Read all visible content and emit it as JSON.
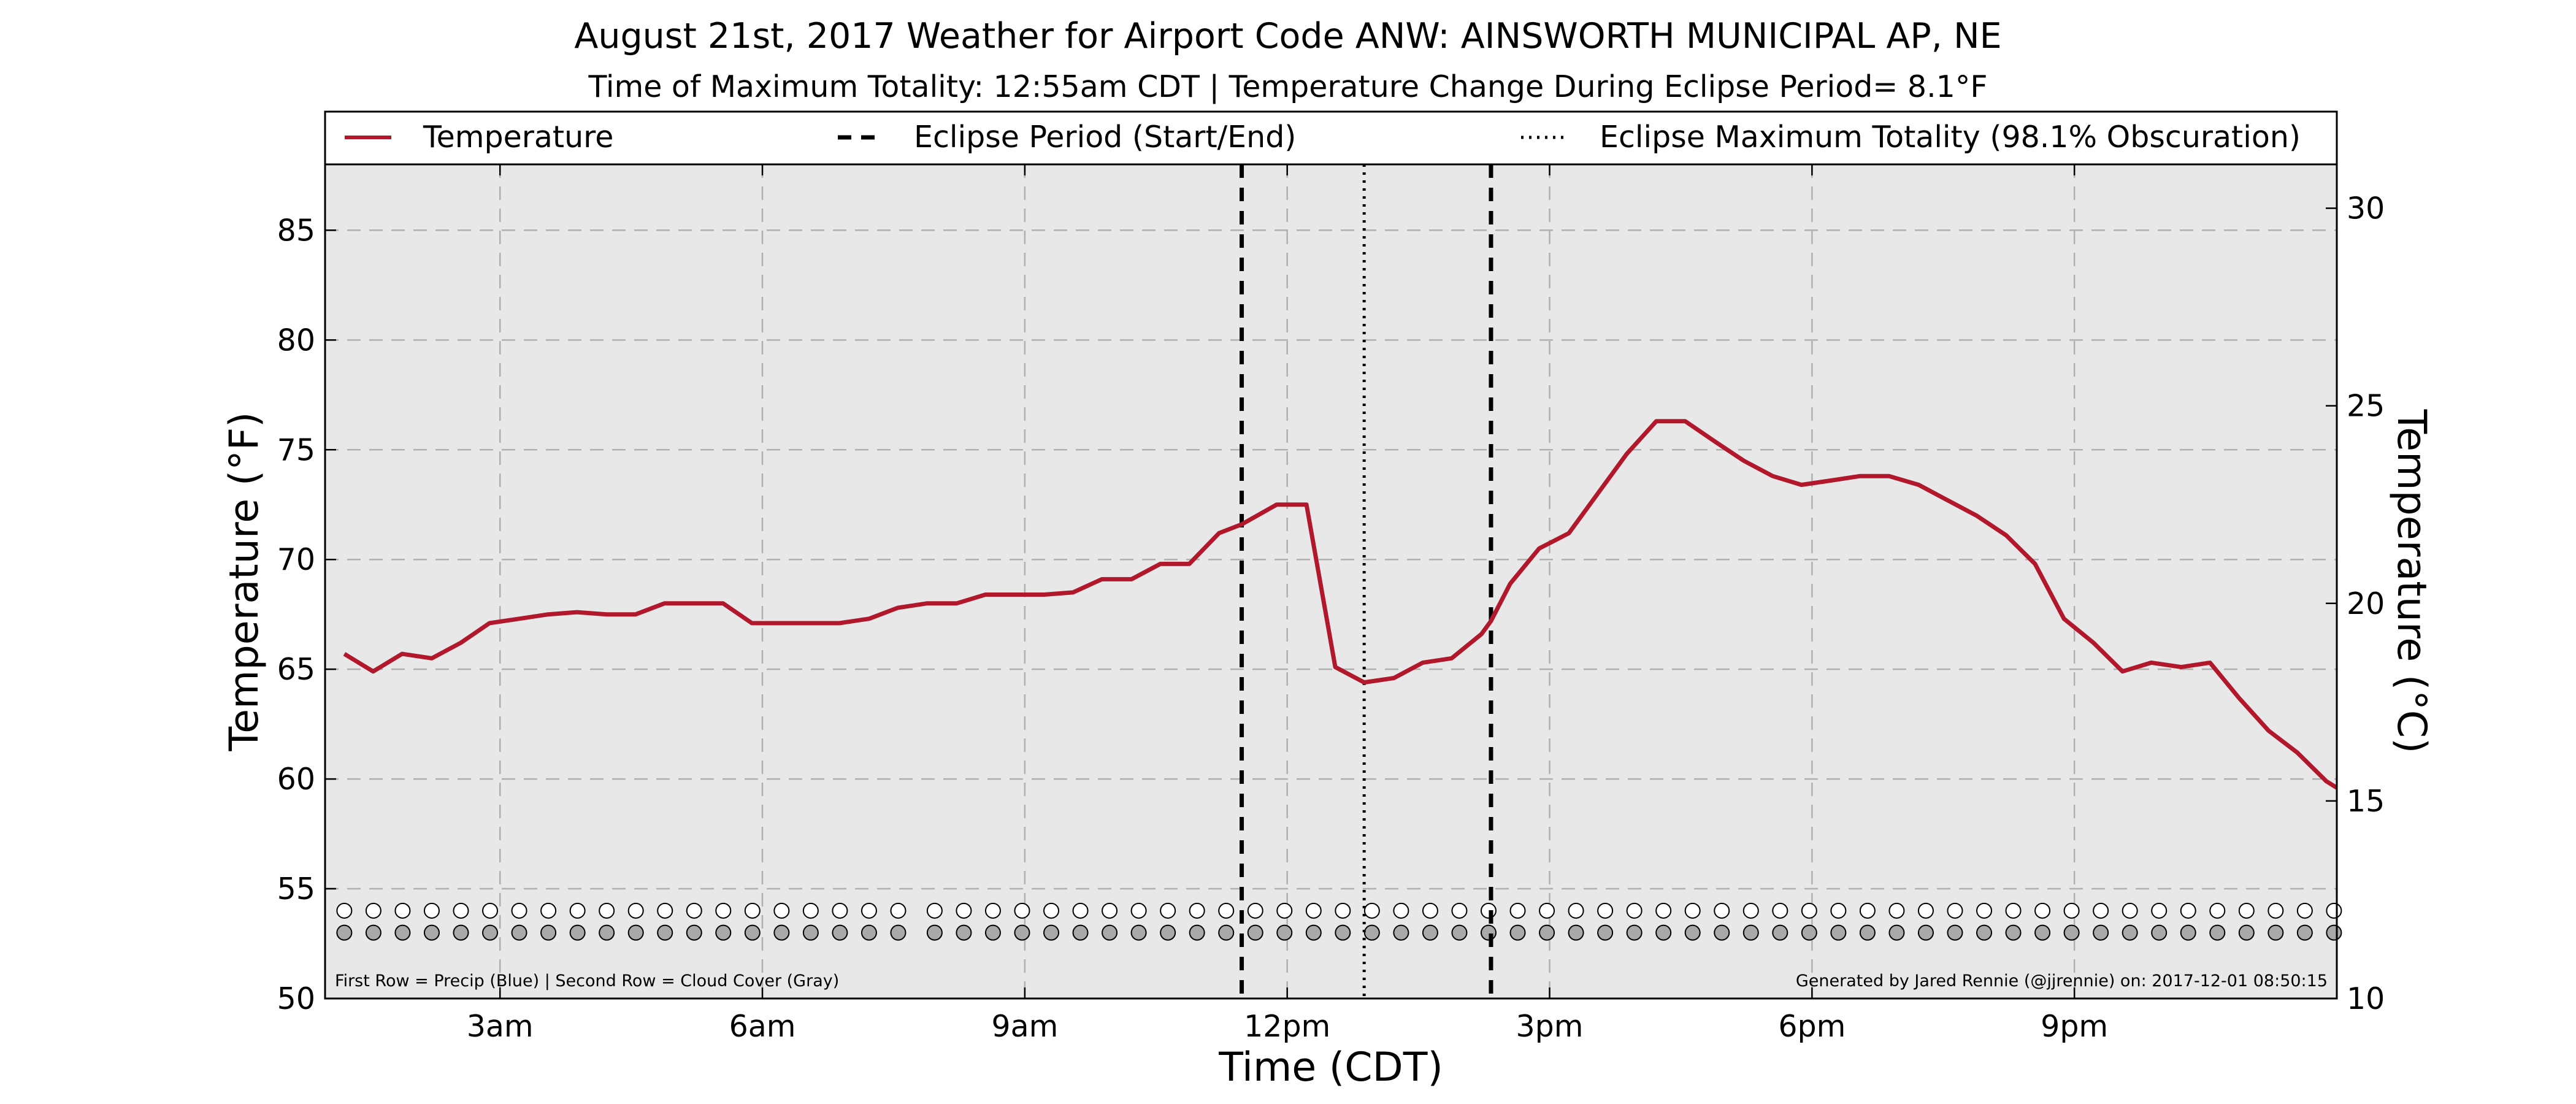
{
  "colors": {
    "temperature": "#b2182b",
    "plot_background": "#e8e8e8",
    "cloud_cover": "#a9a9a9",
    "precip": "#ffffff",
    "axis": "#000000",
    "grid": "#b0b0b0"
  },
  "chart_data": {
    "type": "line",
    "title": "August 21st, 2017 Weather for Airport Code ANW: AINSWORTH MUNICIPAL AP, NE",
    "subtitle": "Time of Maximum Totality: 12:55am CDT | Temperature Change During Eclipse Period= 8.1°F",
    "xlabel": "Time (CDT)",
    "ylabel_left": "Temperature (°F)",
    "ylabel_right": "Temperature (°C)",
    "xlim": [
      1.0,
      24.0
    ],
    "ylim": [
      50,
      88
    ],
    "ylim_right": [
      10,
      31.11
    ],
    "grid": true,
    "x_ticks": [
      {
        "value": 3,
        "label": "3am"
      },
      {
        "value": 6,
        "label": "6am"
      },
      {
        "value": 9,
        "label": "9am"
      },
      {
        "value": 12,
        "label": "12pm"
      },
      {
        "value": 15,
        "label": "3pm"
      },
      {
        "value": 18,
        "label": "6pm"
      },
      {
        "value": 21,
        "label": "9pm"
      }
    ],
    "y_ticks_left": [
      {
        "value": 50,
        "label": "50"
      },
      {
        "value": 55,
        "label": "55"
      },
      {
        "value": 60,
        "label": "60"
      },
      {
        "value": 65,
        "label": "65"
      },
      {
        "value": 70,
        "label": "70"
      },
      {
        "value": 75,
        "label": "75"
      },
      {
        "value": 80,
        "label": "80"
      },
      {
        "value": 85,
        "label": "85"
      }
    ],
    "y_ticks_right": [
      {
        "value": 10,
        "label": "10"
      },
      {
        "value": 15,
        "label": "15"
      },
      {
        "value": 20,
        "label": "20"
      },
      {
        "value": 25,
        "label": "25"
      },
      {
        "value": 30,
        "label": "30"
      }
    ],
    "legend": {
      "placement": "top",
      "items": [
        {
          "style": "solid",
          "label": "Temperature"
        },
        {
          "style": "dashed",
          "label": "Eclipse Period (Start/End)"
        },
        {
          "style": "dotted",
          "label": "Eclipse Maximum Totality (98.1% Obscuration)"
        }
      ]
    },
    "eclipse_start": 11.48,
    "eclipse_end": 14.33,
    "eclipse_max": 12.88,
    "series": [
      {
        "name": "Temperature",
        "x": [
          1.22,
          1.55,
          1.88,
          2.22,
          2.55,
          2.88,
          3.22,
          3.55,
          3.88,
          4.22,
          4.55,
          4.88,
          5.22,
          5.55,
          5.88,
          6.22,
          6.55,
          6.88,
          7.22,
          7.55,
          7.88,
          8.22,
          8.55,
          8.88,
          9.22,
          9.55,
          9.88,
          10.22,
          10.55,
          10.88,
          11.22,
          11.48,
          11.88,
          12.22,
          12.55,
          12.88,
          13.22,
          13.55,
          13.88,
          14.22,
          14.33,
          14.55,
          14.88,
          15.22,
          15.55,
          15.88,
          16.22,
          16.55,
          16.88,
          17.22,
          17.55,
          17.88,
          18.22,
          18.55,
          18.88,
          19.22,
          19.55,
          19.88,
          20.22,
          20.55,
          20.88,
          21.22,
          21.55,
          21.88,
          22.22,
          22.55,
          22.88,
          23.22,
          23.55,
          23.88,
          24.0
        ],
        "values": [
          65.7,
          64.9,
          65.7,
          65.5,
          66.2,
          67.1,
          67.3,
          67.5,
          67.6,
          67.5,
          67.5,
          68.0,
          68.0,
          68.0,
          67.1,
          67.1,
          67.1,
          67.1,
          67.3,
          67.8,
          68.0,
          68.0,
          68.4,
          68.4,
          68.4,
          68.5,
          69.1,
          69.1,
          69.8,
          69.8,
          71.2,
          71.6,
          72.5,
          72.5,
          65.1,
          64.4,
          64.6,
          65.3,
          65.5,
          66.6,
          67.2,
          68.9,
          70.5,
          71.2,
          73.0,
          74.8,
          76.3,
          76.3,
          75.4,
          74.5,
          73.8,
          73.4,
          73.6,
          73.8,
          73.8,
          73.4,
          72.7,
          72.0,
          71.1,
          69.8,
          67.3,
          66.2,
          64.9,
          65.3,
          65.1,
          65.3,
          63.7,
          62.2,
          61.2,
          59.9,
          59.6
        ]
      }
    ],
    "precip_row": {
      "y": 54.0,
      "start": 1.22,
      "step": 0.3333,
      "count": 69,
      "gap_after_index": 19
    },
    "cloud_row": {
      "y": 53.0,
      "start": 1.22,
      "step": 0.3333,
      "count": 69,
      "gap_after_index": 19
    },
    "note_left": "First Row = Precip (Blue) | Second Row = Cloud Cover (Gray)",
    "note_right": "Generated by Jared Rennie (@jjrennie) on: 2017-12-01 08:50:15"
  }
}
